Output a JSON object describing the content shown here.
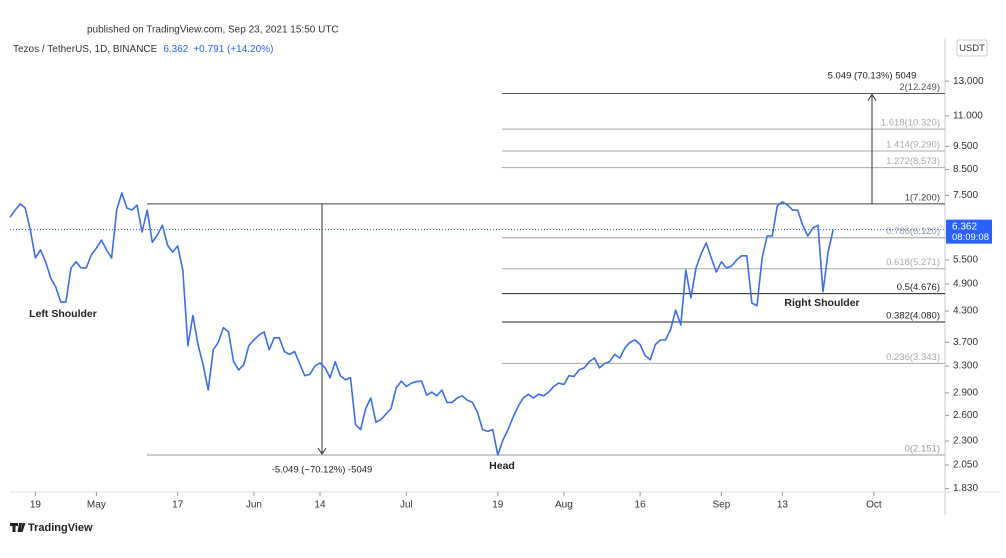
{
  "header": {
    "published": "published on TradingView.com, Sep 23, 2021 15:50 UTC",
    "symbol": "Tezos / TetherUS, 1D, BINANCE",
    "price": "6.362",
    "change": "+0.791 (+14.20%)"
  },
  "chart_data": {
    "type": "line",
    "currency": "USDT",
    "log_scale": true,
    "color": "#3d6ee8",
    "values": [
      6.75,
      6.99,
      7.2,
      7.06,
      6.35,
      5.55,
      5.77,
      5.45,
      5.04,
      4.83,
      4.49,
      4.49,
      5.29,
      5.45,
      5.29,
      5.29,
      5.63,
      5.82,
      6.05,
      5.77,
      5.55,
      6.99,
      7.59,
      7.06,
      6.99,
      7.16,
      6.29,
      6.99,
      5.99,
      6.2,
      6.5,
      5.91,
      5.71,
      5.88,
      5.24,
      3.64,
      4.21,
      3.66,
      3.32,
      2.94,
      3.57,
      3.7,
      3.97,
      3.89,
      3.37,
      3.24,
      3.32,
      3.64,
      3.74,
      3.83,
      3.89,
      3.57,
      3.78,
      3.78,
      3.54,
      3.49,
      3.54,
      3.34,
      3.15,
      3.17,
      3.3,
      3.35,
      3.27,
      3.12,
      3.37,
      3.15,
      3.09,
      3.12,
      2.49,
      2.43,
      2.69,
      2.83,
      2.52,
      2.55,
      2.62,
      2.69,
      2.97,
      3.07,
      2.99,
      3.04,
      3.06,
      3.07,
      2.87,
      2.91,
      2.86,
      2.94,
      2.77,
      2.77,
      2.83,
      2.86,
      2.8,
      2.77,
      2.64,
      2.43,
      2.41,
      2.43,
      2.151,
      2.31,
      2.43,
      2.58,
      2.72,
      2.83,
      2.88,
      2.83,
      2.88,
      2.86,
      2.91,
      2.99,
      3.04,
      3.02,
      3.15,
      3.14,
      3.24,
      3.27,
      3.37,
      3.43,
      3.27,
      3.34,
      3.37,
      3.49,
      3.43,
      3.6,
      3.7,
      3.74,
      3.66,
      3.47,
      3.4,
      3.66,
      3.74,
      3.74,
      3.93,
      4.32,
      4.02,
      5.24,
      4.58,
      5.29,
      5.66,
      5.97,
      5.55,
      5.19,
      5.45,
      5.29,
      5.34,
      5.5,
      5.61,
      5.61,
      4.47,
      4.41,
      5.55,
      6.17,
      6.17,
      7.13,
      7.27,
      7.16,
      6.99,
      6.99,
      6.5,
      6.17,
      6.41,
      6.5,
      4.72,
      5.71,
      6.362
    ],
    "xlim": [
      0,
      184
    ],
    "xticks": [
      {
        "value": 5,
        "label": "19"
      },
      {
        "value": 17,
        "label": "May"
      },
      {
        "value": 33,
        "label": "17"
      },
      {
        "value": 48,
        "label": "Jun"
      },
      {
        "value": 61,
        "label": "14"
      },
      {
        "value": 78,
        "label": "Jul"
      },
      {
        "value": 96,
        "label": "19"
      },
      {
        "value": 109,
        "label": "Aug"
      },
      {
        "value": 124,
        "label": "16"
      },
      {
        "value": 140,
        "label": "Sep"
      },
      {
        "value": 152,
        "label": "13"
      },
      {
        "value": 170,
        "label": "Oct"
      }
    ],
    "ylim": [
      1.8,
      16
    ],
    "yticks": [
      {
        "value": 13,
        "label": "13.000"
      },
      {
        "value": 11,
        "label": "11.000"
      },
      {
        "value": 9.5,
        "label": "9.500"
      },
      {
        "value": 8.5,
        "label": "8.500"
      },
      {
        "value": 7.5,
        "label": "7.500"
      },
      {
        "value": 5.5,
        "label": "5.500"
      },
      {
        "value": 4.9,
        "label": "4.900"
      },
      {
        "value": 4.3,
        "label": "4.300"
      },
      {
        "value": 3.7,
        "label": "3.700"
      },
      {
        "value": 3.3,
        "label": "3.300"
      },
      {
        "value": 2.9,
        "label": "2.900"
      },
      {
        "value": 2.6,
        "label": "2.600"
      },
      {
        "value": 2.3,
        "label": "2.300"
      },
      {
        "value": 2.05,
        "label": "2.050"
      },
      {
        "value": 1.83,
        "label": "1.830"
      }
    ],
    "price_tag": {
      "value": 6.362,
      "countdown": "08:09:08",
      "color": "#2962ff"
    },
    "fib_levels": [
      {
        "label": "2(12.249)",
        "value": 12.249,
        "color": "#555"
      },
      {
        "label": "1.618(10.320)",
        "value": 10.32,
        "color": "#aaa"
      },
      {
        "label": "1.414(9.290)",
        "value": 9.29,
        "color": "#aaa"
      },
      {
        "label": "1.272(8.573)",
        "value": 8.573,
        "color": "#aaa"
      },
      {
        "label": "1(7.200)",
        "value": 7.2,
        "color": "#444"
      },
      {
        "label": "0.786(6.120)",
        "value": 6.12,
        "color": "#999"
      },
      {
        "label": "0.618(5.271)",
        "value": 5.271,
        "color": "#aaa"
      },
      {
        "label": "0.5(4.676)",
        "value": 4.676,
        "color": "#222"
      },
      {
        "label": "0.382(4.080)",
        "value": 4.08,
        "color": "#222"
      },
      {
        "label": "0.236(3.343)",
        "value": 3.343,
        "color": "#aaa"
      },
      {
        "label": "0(2.151)",
        "value": 2.151,
        "color": "#999"
      }
    ],
    "measures": [
      "5.049 (70.13%) 5049",
      "-5.049 (−70.12%) -5049"
    ],
    "annotations": [
      "Left Shoulder",
      "Head",
      "Right Shoulder"
    ]
  },
  "footer": {
    "logo": "TradingView"
  }
}
